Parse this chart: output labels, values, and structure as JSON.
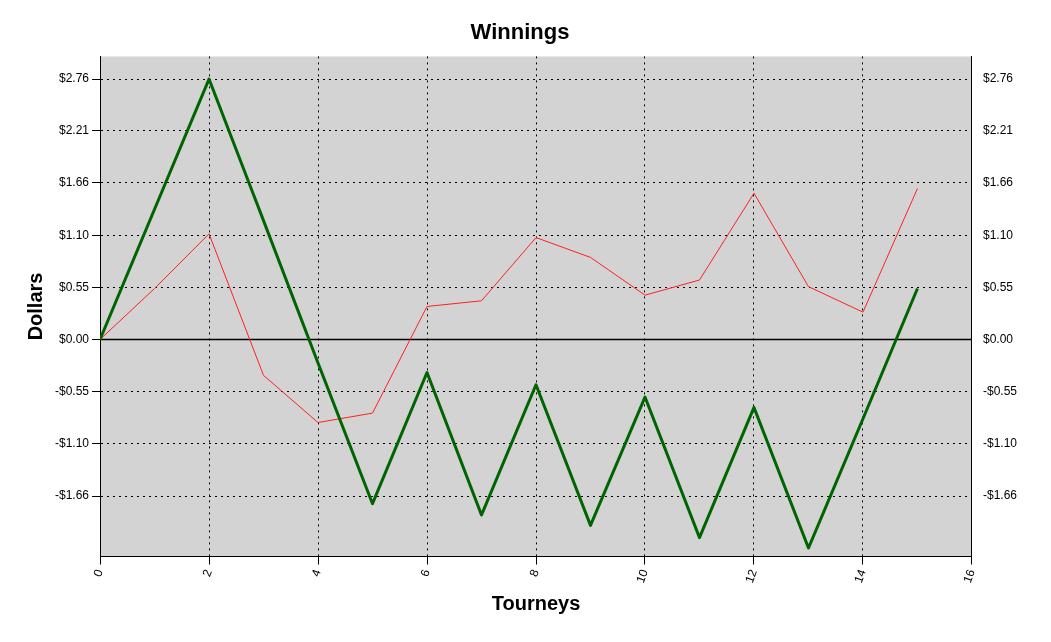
{
  "chart_data": {
    "type": "line",
    "title": "Winnings",
    "xlabel": "Tourneys",
    "ylabel": "Dollars",
    "x": [
      0,
      1,
      2,
      3,
      4,
      5,
      6,
      7,
      8,
      9,
      10,
      11,
      12,
      13,
      14,
      15
    ],
    "series": [
      {
        "color": "#006400",
        "values": [
          0,
          1.38,
          2.76,
          1.26,
          -0.25,
          -1.74,
          -0.35,
          -1.86,
          -0.48,
          -1.97,
          -0.61,
          -2.1,
          -0.72,
          -2.21,
          -0.84,
          0.54
        ]
      },
      {
        "color": "#ff2020",
        "values": [
          0,
          0.54,
          1.12,
          -0.38,
          -0.88,
          -0.78,
          0.35,
          0.41,
          1.08,
          0.87,
          0.47,
          0.63,
          1.55,
          0.56,
          0.29,
          1.6
        ]
      }
    ],
    "xlim": [
      0,
      16
    ],
    "xticks": [
      0,
      2,
      4,
      6,
      8,
      10,
      12,
      14,
      16
    ],
    "ylim": [
      -2.3,
      3.0
    ],
    "yticks": [
      {
        "value": -1.66,
        "label": "-$1.66"
      },
      {
        "value": -1.1,
        "label": "-$1.10"
      },
      {
        "value": -0.55,
        "label": "-$0.55"
      },
      {
        "value": 0,
        "label": "$0.00"
      },
      {
        "value": 0.55,
        "label": "$0.55"
      },
      {
        "value": 1.1,
        "label": "$1.10"
      },
      {
        "value": 1.66,
        "label": "$1.66"
      },
      {
        "value": 2.21,
        "label": "$2.21"
      },
      {
        "value": 2.76,
        "label": "$2.76"
      }
    ],
    "y2lim": [
      -2.3,
      3.0
    ],
    "y2ticks": [
      {
        "value": -1.66,
        "label": "-$1.66"
      },
      {
        "value": -1.1,
        "label": "-$1.10"
      },
      {
        "value": -0.55,
        "label": "-$0.55"
      },
      {
        "value": 0,
        "label": "$0.00"
      },
      {
        "value": 0.55,
        "label": "$0.55"
      },
      {
        "value": 1.1,
        "label": "$1.10"
      },
      {
        "value": 1.66,
        "label": "$1.66"
      },
      {
        "value": 2.21,
        "label": "$2.21"
      },
      {
        "value": 2.76,
        "label": "$2.76"
      }
    ],
    "ref_lines": [
      {
        "axis": "y",
        "value": 0,
        "color": "#000000"
      }
    ],
    "grid": true,
    "line_style": "solid",
    "marker": "none",
    "legend": false
  }
}
